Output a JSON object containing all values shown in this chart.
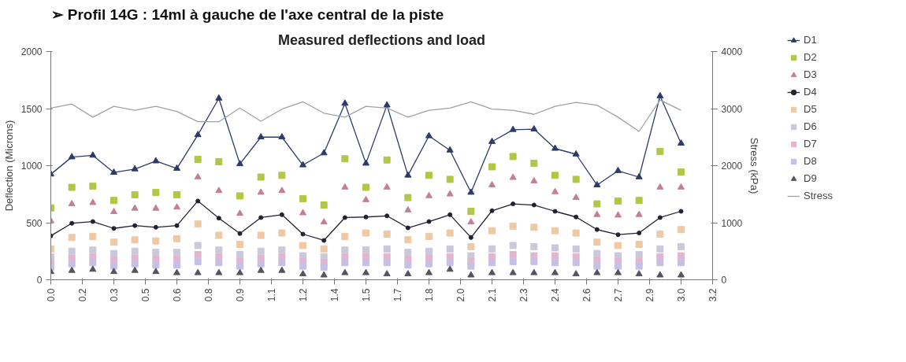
{
  "chart_data": {
    "type": "scatter",
    "title": "➢ Profil 14G : 14ml  à gauche de l'axe central de la piste",
    "subtitle": "Measured deflections and load",
    "ylabel": "Deflection (Microns)",
    "y2label": "Stress (kPa)",
    "x": [
      0.0,
      0.1,
      0.2,
      0.3,
      0.4,
      0.5,
      0.6,
      0.7,
      0.8,
      0.9,
      1.0,
      1.1,
      1.2,
      1.3,
      1.4,
      1.5,
      1.6,
      1.7,
      1.8,
      1.9,
      2.0,
      2.1,
      2.2,
      2.3,
      2.4,
      2.5,
      2.6,
      2.7,
      2.8,
      2.9,
      3.0
    ],
    "xlim": [
      0,
      3.15
    ],
    "xticks": [
      {
        "value": 0,
        "label": "0.0"
      },
      {
        "value": 0.15,
        "label": "0.2"
      },
      {
        "value": 0.3,
        "label": "0.3"
      },
      {
        "value": 0.45,
        "label": "0.5"
      },
      {
        "value": 0.6,
        "label": "0.6"
      },
      {
        "value": 0.75,
        "label": "0.8"
      },
      {
        "value": 0.9,
        "label": "0.9"
      },
      {
        "value": 1.05,
        "label": "1.1"
      },
      {
        "value": 1.2,
        "label": "1.2"
      },
      {
        "value": 1.35,
        "label": "1.4"
      },
      {
        "value": 1.5,
        "label": "1.5"
      },
      {
        "value": 1.65,
        "label": "1.7"
      },
      {
        "value": 1.8,
        "label": "1.8"
      },
      {
        "value": 1.95,
        "label": "2.0"
      },
      {
        "value": 2.1,
        "label": "2.1"
      },
      {
        "value": 2.25,
        "label": "2.3"
      },
      {
        "value": 2.4,
        "label": "2.4"
      },
      {
        "value": 2.55,
        "label": "2.6"
      },
      {
        "value": 2.7,
        "label": "2.7"
      },
      {
        "value": 2.85,
        "label": "2.9"
      },
      {
        "value": 3.0,
        "label": "3.0"
      },
      {
        "value": 3.15,
        "label": "3.2"
      }
    ],
    "ylim": [
      0,
      2000
    ],
    "yticks": [
      0,
      500,
      1000,
      1500,
      2000
    ],
    "y2lim": [
      0,
      4000
    ],
    "y2ticks": [
      0,
      1000,
      2000,
      3000,
      4000
    ],
    "grid": false,
    "legend": "right",
    "series": [
      {
        "name": "D1",
        "type": "line",
        "marker": "triangle",
        "color": "#2e3a6a",
        "values": [
          925,
          1075,
          1090,
          940,
          970,
          1040,
          975,
          1270,
          1590,
          1015,
          1250,
          1250,
          1005,
          1110,
          1545,
          1020,
          1530,
          915,
          1260,
          1135,
          765,
          1210,
          1315,
          1320,
          1150,
          1100,
          830,
          955,
          900,
          1610,
          1195
        ]
      },
      {
        "name": "D2",
        "marker": "square",
        "color": "#b3c648",
        "values": [
          630,
          810,
          820,
          695,
          745,
          765,
          745,
          1055,
          1035,
          735,
          900,
          915,
          710,
          655,
          1060,
          810,
          1050,
          720,
          915,
          880,
          600,
          990,
          1080,
          1020,
          915,
          880,
          665,
          690,
          695,
          1125,
          945
        ]
      },
      {
        "name": "D3",
        "marker": "triangle",
        "color": "#c47f98",
        "values": [
          515,
          665,
          675,
          595,
          625,
          625,
          635,
          900,
          780,
          580,
          765,
          780,
          585,
          505,
          810,
          700,
          810,
          610,
          735,
          750,
          505,
          830,
          895,
          865,
          770,
          720,
          570,
          565,
          570,
          810,
          810
        ]
      },
      {
        "name": "D4",
        "type": "line",
        "marker": "circle",
        "color": "#222233",
        "values": [
          385,
          495,
          510,
          450,
          475,
          460,
          475,
          690,
          540,
          405,
          545,
          570,
          400,
          345,
          545,
          550,
          560,
          455,
          510,
          570,
          370,
          605,
          665,
          655,
          600,
          550,
          440,
          395,
          410,
          545,
          600
        ]
      },
      {
        "name": "D5",
        "marker": "square",
        "color": "#efc9a4",
        "values": [
          270,
          370,
          380,
          330,
          350,
          340,
          360,
          490,
          390,
          310,
          390,
          410,
          300,
          270,
          380,
          410,
          400,
          350,
          380,
          410,
          290,
          430,
          470,
          460,
          430,
          410,
          330,
          300,
          310,
          400,
          440
        ]
      },
      {
        "name": "D6",
        "marker": "square",
        "color": "#c9c9d9",
        "values": [
          200,
          250,
          260,
          230,
          250,
          240,
          240,
          300,
          260,
          220,
          250,
          260,
          210,
          200,
          260,
          260,
          270,
          240,
          250,
          270,
          210,
          270,
          300,
          290,
          280,
          270,
          230,
          210,
          220,
          270,
          290
        ]
      },
      {
        "name": "D7",
        "marker": "square",
        "color": "#e2b6cf",
        "values": [
          150,
          190,
          200,
          170,
          190,
          180,
          180,
          220,
          200,
          160,
          190,
          200,
          160,
          150,
          200,
          200,
          200,
          180,
          190,
          200,
          160,
          200,
          220,
          210,
          210,
          200,
          170,
          160,
          160,
          200,
          210
        ]
      },
      {
        "name": "D8",
        "marker": "square",
        "color": "#c6bfe6",
        "values": [
          110,
          140,
          150,
          120,
          140,
          130,
          130,
          160,
          150,
          120,
          140,
          150,
          120,
          110,
          150,
          150,
          150,
          130,
          140,
          150,
          120,
          150,
          160,
          160,
          150,
          150,
          120,
          120,
          120,
          150,
          150
        ]
      },
      {
        "name": "D9",
        "marker": "triangle",
        "color": "#555560",
        "values": [
          70,
          80,
          90,
          70,
          80,
          70,
          60,
          60,
          60,
          60,
          80,
          80,
          50,
          40,
          60,
          60,
          50,
          50,
          60,
          90,
          40,
          60,
          60,
          60,
          60,
          50,
          60,
          60,
          50,
          40,
          40
        ]
      },
      {
        "name": "Stress",
        "type": "line",
        "marker": "none",
        "axis": "y2",
        "color": "#a0a0a8",
        "values": [
          3010,
          3080,
          2850,
          3040,
          2970,
          3040,
          2950,
          2770,
          2770,
          3010,
          2780,
          2990,
          3120,
          2920,
          2850,
          3040,
          3010,
          2850,
          2970,
          3010,
          3120,
          2990,
          2970,
          2900,
          3040,
          3110,
          3060,
          2850,
          2600,
          3150,
          2970
        ]
      }
    ]
  }
}
